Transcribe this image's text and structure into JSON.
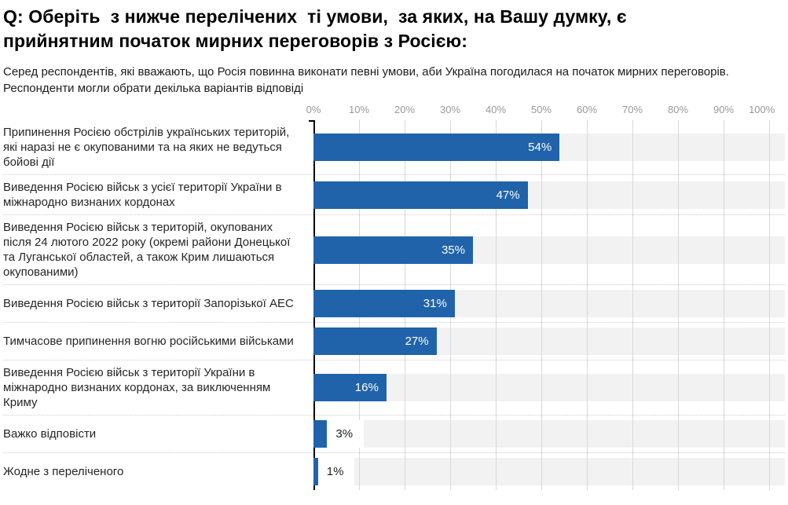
{
  "header": {
    "title_line1": "Q: Оберіть  з нижче перелічених  ті умови,  за яких, на Вашу думку, є",
    "title_line2": "прийнятним початок мирних переговорів з Росією:",
    "subtitle": "Серед респондентів, які вважають, що Росія повинна виконати певні умови, аби Україна погодилася на початок мирних переговорів. Респонденти могли обрати декілька варіантів відповіді"
  },
  "colors": {
    "bar": "#2063aa",
    "band_background": "#f2f2f2",
    "gridline": "#d8d8d8",
    "axis_spine": "#000000",
    "tick_text": "#999999",
    "category_text": "#262626",
    "value_label_inside": "#ffffff",
    "value_label_outside": "#222222",
    "row_separator": "#cccccc"
  },
  "chart_data": {
    "type": "bar",
    "orientation": "horizontal",
    "title": "Q: Оберіть з нижче перелічених ті умови, за яких, на Вашу думку, є прийнятним початок мирних переговорів з Росією:",
    "subtitle": "Серед респондентів, які вважають, що Росія повинна виконати певні умови, аби Україна погодилася на початок мирних переговорів. Респонденти могли обрати декілька варіантів відповіді",
    "xlabel": "",
    "ylabel": "",
    "xlim": [
      0,
      100
    ],
    "x_tick_labels": [
      "0%",
      "10%",
      "20%",
      "30%",
      "40%",
      "50%",
      "60%",
      "70%",
      "80%",
      "90%",
      "100%"
    ],
    "grid": true,
    "legend": false,
    "value_suffix": "%",
    "categories": [
      "Припинення Росією обстрілів українських територій, які наразі не є окупованими та на яких не ведуться бойові дії",
      "Виведення Росією військ з усієї території України в міжнародно визнаних кордонах",
      "Виведення Росією військ з територій, окупованих після 24 лютого 2022 року (окремі райони Донецької та Луганської областей, а також Крим лишаються окупованими)",
      "Виведення Росією військ з території Запорізької АЕС",
      "Тимчасове припинення вогню російськими військами",
      "Виведення Росією військ з території України в міжнародно визнаних кордонах, за виключенням Криму",
      "Важко відповісти",
      "Жодне з переліченого"
    ],
    "values": [
      54,
      47,
      35,
      31,
      27,
      16,
      3,
      1
    ],
    "value_labels": [
      "54%",
      "47%",
      "35%",
      "31%",
      "27%",
      "16%",
      "3%",
      "1%"
    ]
  }
}
